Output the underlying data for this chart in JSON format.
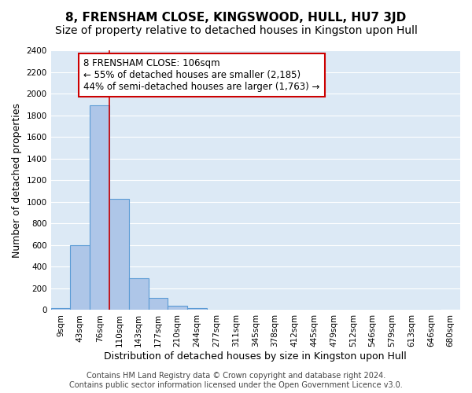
{
  "title": "8, FRENSHAM CLOSE, KINGSWOOD, HULL, HU7 3JD",
  "subtitle": "Size of property relative to detached houses in Kingston upon Hull",
  "xlabel": "Distribution of detached houses by size in Kingston upon Hull",
  "ylabel": "Number of detached properties",
  "bins": [
    "9sqm",
    "43sqm",
    "76sqm",
    "110sqm",
    "143sqm",
    "177sqm",
    "210sqm",
    "244sqm",
    "277sqm",
    "311sqm",
    "345sqm",
    "378sqm",
    "412sqm",
    "445sqm",
    "479sqm",
    "512sqm",
    "546sqm",
    "579sqm",
    "613sqm",
    "646sqm",
    "680sqm"
  ],
  "bar_values": [
    20,
    600,
    1890,
    1030,
    295,
    110,
    40,
    20,
    5,
    0,
    0,
    0,
    0,
    0,
    0,
    0,
    0,
    0,
    0,
    0
  ],
  "bar_color": "#aec6e8",
  "bar_edge_color": "#5b9bd5",
  "background_color": "#dce9f5",
  "grid_color": "#ffffff",
  "vline_x_idx": 2.5,
  "vline_color": "#cc0000",
  "annotation_text": "8 FRENSHAM CLOSE: 106sqm\n← 55% of detached houses are smaller (2,185)\n44% of semi-detached houses are larger (1,763) →",
  "annotation_box_color": "#ffffff",
  "annotation_box_edge_color": "#cc0000",
  "ylim": [
    0,
    2400
  ],
  "yticks": [
    0,
    200,
    400,
    600,
    800,
    1000,
    1200,
    1400,
    1600,
    1800,
    2000,
    2200,
    2400
  ],
  "footer_text": "Contains HM Land Registry data © Crown copyright and database right 2024.\nContains public sector information licensed under the Open Government Licence v3.0.",
  "title_fontsize": 11,
  "subtitle_fontsize": 10,
  "xlabel_fontsize": 9,
  "ylabel_fontsize": 9,
  "tick_fontsize": 7.5,
  "annotation_fontsize": 8.5,
  "footer_fontsize": 7
}
